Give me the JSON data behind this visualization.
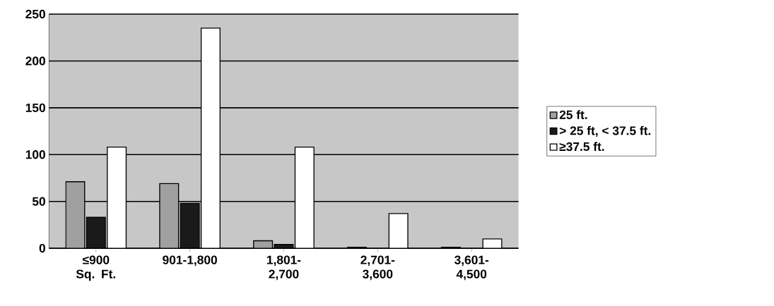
{
  "chart_data": {
    "type": "bar",
    "categories": [
      "≤900 Sq. Ft.",
      "901-1,800",
      "1,801-2,700",
      "2,701-3,600",
      "3,601-4,500"
    ],
    "series": [
      {
        "name": "25 ft.",
        "color": "#a0a0a0",
        "values": [
          71,
          69,
          8,
          1,
          1
        ]
      },
      {
        "name": "> 25 ft, < 37.5 ft.",
        "color": "#1a1a1a",
        "values": [
          33,
          48,
          4,
          null,
          null
        ]
      },
      {
        "name": "≥37.5 ft.",
        "color": "#ffffff",
        "values": [
          108,
          235,
          108,
          37,
          10
        ]
      }
    ],
    "ylim": [
      0,
      250
    ],
    "yticks": [
      0,
      50,
      100,
      150,
      200,
      250
    ],
    "grid": "y",
    "legend": "right"
  }
}
